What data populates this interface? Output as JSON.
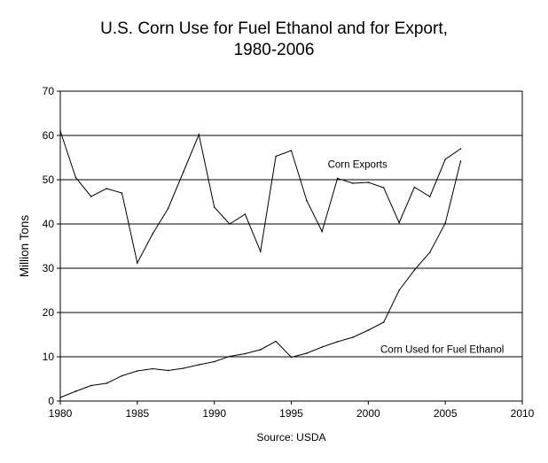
{
  "chart_data": {
    "type": "line",
    "title": "U.S. Corn Use for Fuel Ethanol and for Export,",
    "subtitle": "1980-2006",
    "xlabel": "",
    "ylabel": "Million Tons",
    "source": "Source: USDA",
    "xlim": [
      1980,
      2010
    ],
    "ylim": [
      0,
      70
    ],
    "xticks": [
      "1980",
      "1985",
      "1990",
      "1995",
      "2000",
      "2005",
      "2010"
    ],
    "yticks": [
      "0",
      "10",
      "20",
      "30",
      "40",
      "50",
      "60",
      "70"
    ],
    "grid": "horizontal",
    "legend": "none",
    "series": [
      {
        "name": "Corn Exports",
        "x": [
          1980,
          1981,
          1982,
          1983,
          1984,
          1985,
          1986,
          1987,
          1988,
          1989,
          1990,
          1991,
          1992,
          1993,
          1994,
          1995,
          1996,
          1997,
          1998,
          1999,
          2000,
          2001,
          2002,
          2003,
          2004,
          2005,
          2006
        ],
        "values": [
          61.0,
          50.5,
          46.2,
          48.0,
          47.0,
          31.2,
          37.8,
          43.5,
          51.8,
          60.2,
          43.8,
          40.0,
          42.2,
          33.8,
          55.3,
          56.6,
          45.3,
          38.3,
          50.3,
          49.2,
          49.4,
          48.2,
          40.3,
          48.3,
          46.2,
          54.6,
          57.0
        ]
      },
      {
        "name": "Corn Used for Fuel Ethanol",
        "x": [
          1980,
          1981,
          1982,
          1983,
          1984,
          1985,
          1986,
          1987,
          1988,
          1989,
          1990,
          1991,
          1992,
          1993,
          1994,
          1995,
          1996,
          1997,
          1998,
          1999,
          2000,
          2001,
          2002,
          2003,
          2004,
          2005,
          2006
        ],
        "values": [
          0.8,
          2.2,
          3.5,
          4.0,
          5.7,
          6.8,
          7.3,
          6.9,
          7.4,
          8.2,
          8.9,
          10.1,
          10.7,
          11.6,
          13.5,
          9.9,
          10.8,
          12.2,
          13.4,
          14.4,
          16.0,
          17.8,
          25.0,
          29.6,
          33.6,
          40.2,
          54.2
        ]
      }
    ],
    "annotations": [
      {
        "text": "Corn Exports",
        "x": 1999.3,
        "y": 53.5
      },
      {
        "text": "Corn Used for Fuel Ethanol",
        "x": 2004.8,
        "y": 11.7
      }
    ]
  }
}
